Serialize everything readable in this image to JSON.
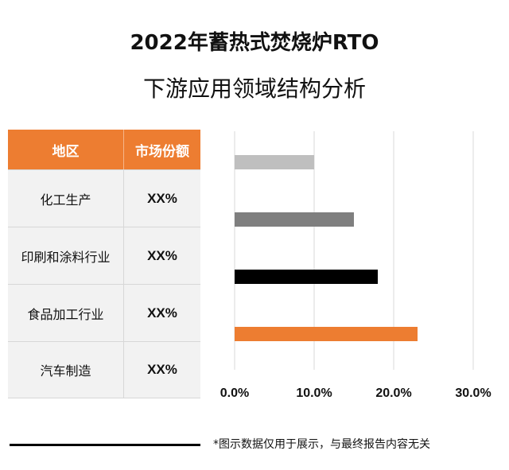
{
  "title_line1": "2022年蓄热式焚烧炉RTO",
  "title_line2": "下游应用领域结构分析",
  "table": {
    "headers": [
      "地区",
      "市场份额"
    ],
    "rows": [
      {
        "region": "化工生产",
        "share": "XX%"
      },
      {
        "region": "印刷和涂料行业",
        "share": "XX%"
      },
      {
        "region": "食品加工行业",
        "share": "XX%"
      },
      {
        "region": "汽车制造",
        "share": "XX%"
      }
    ]
  },
  "chart_data": {
    "type": "bar",
    "orientation": "horizontal",
    "categories": [
      "化工生产",
      "印刷和涂料行业",
      "食品加工行业",
      "汽车制造"
    ],
    "values": [
      0.1,
      0.15,
      0.18,
      0.23
    ],
    "colors": [
      "#BFBFBF",
      "#7F7F7F",
      "#000000",
      "#ED7D31"
    ],
    "xlim": [
      0,
      0.3
    ],
    "xticks": [
      0,
      0.1,
      0.2,
      0.3
    ],
    "xtick_labels": [
      "0.0%",
      "10.0%",
      "20.0%",
      "30.0%"
    ],
    "grid": true
  },
  "footnote": "*图示数据仅用于展示，与最终报告内容无关"
}
